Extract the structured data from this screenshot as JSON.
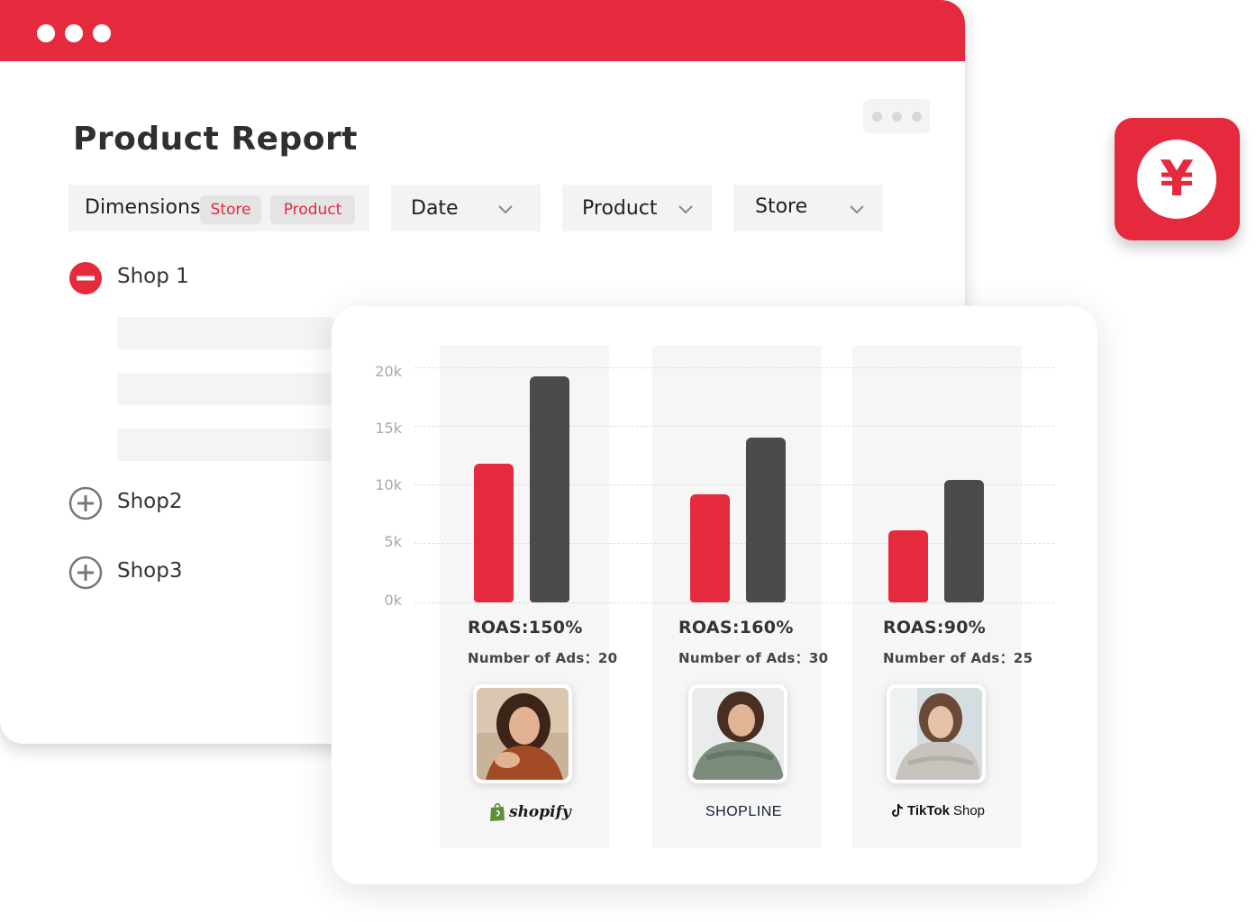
{
  "window": {
    "title": "Product Report",
    "filters": {
      "dimensions_label": "Dimensions",
      "dimension_chips": [
        "Store",
        "Product"
      ],
      "date_label": "Date",
      "product_label": "Product",
      "store_label": "Store"
    },
    "shops": [
      {
        "name": "Shop 1",
        "state": "expanded"
      },
      {
        "name": "Shop2",
        "state": "collapsed"
      },
      {
        "name": "Shop3",
        "state": "collapsed"
      }
    ]
  },
  "chart_data": {
    "type": "bar",
    "categories": [
      "shopify",
      "SHOPLINE",
      "TikTok Shop"
    ],
    "series": [
      {
        "values": [
          11800,
          9200,
          6100
        ],
        "color": "#e42a3c"
      },
      {
        "values": [
          19200,
          14000,
          10400
        ],
        "color": "#4b4b4b"
      }
    ],
    "yticks": [
      "20k",
      "15k",
      "10k",
      "5k",
      "0k"
    ],
    "ylim": [
      0,
      20000
    ],
    "grid": true,
    "annotations": [
      {
        "roas": "ROAS:150%",
        "ads": "Number of Ads：20"
      },
      {
        "roas": "ROAS:160%",
        "ads": "Number of Ads：30"
      },
      {
        "roas": "ROAS:90%",
        "ads": "Number of Ads：25"
      }
    ]
  },
  "brands": {
    "shopify": "shopify",
    "shopline": "SHOPLINE",
    "tiktok_main": "TikTok",
    "tiktok_sub": "Shop"
  },
  "badge": {
    "symbol": "¥",
    "icon": "yen-icon"
  },
  "colors": {
    "accent": "#e42a3c",
    "dark_bar": "#4b4b4b"
  }
}
